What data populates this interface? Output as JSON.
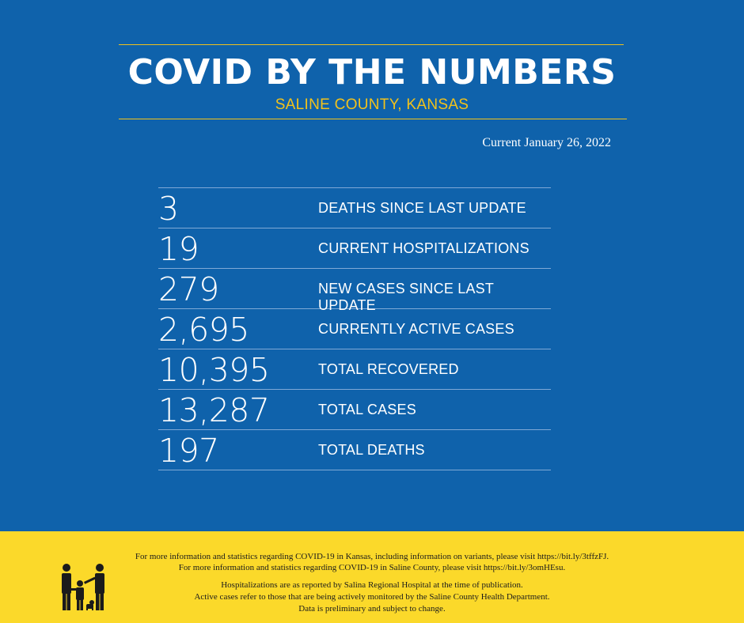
{
  "header": {
    "title": "COVID BY THE NUMBERS",
    "subtitle": "SALINE COUNTY, KANSAS",
    "current_date": "Current January 26, 2022"
  },
  "stats": [
    {
      "value": "3",
      "label": "DEATHS SINCE LAST UPDATE"
    },
    {
      "value": "19",
      "label": "CURRENT HOSPITALIZATIONS"
    },
    {
      "value": "279",
      "label": "NEW CASES SINCE LAST UPDATE"
    },
    {
      "value": "2,695",
      "label": "CURRENTLY ACTIVE CASES"
    },
    {
      "value": "10,395",
      "label": "TOTAL RECOVERED"
    },
    {
      "value": "13,287",
      "label": "TOTAL CASES"
    },
    {
      "value": "197",
      "label": "TOTAL DEATHS"
    }
  ],
  "footer": {
    "note1": "For more information and statistics regarding COVID-19 in Kansas, including information on variants, please visit https://bit.ly/3tffzFJ.",
    "note2": "For more information and statistics regarding COVID-19 in Saline County, please visit  https://bit.ly/3omHEsu.",
    "note3": "Hospitalizations are as reported by Salina Regional Hospital at the time of publication.",
    "note4": "Active cases refer to those that are being actively monitored by the Saline County Health Department.",
    "note5": "Data is preliminary and subject to change."
  },
  "colors": {
    "background": "#0f62ab",
    "accent": "#f3c21a",
    "footer": "#fbd92a"
  },
  "icons": {
    "logo": "family-logo-icon"
  }
}
